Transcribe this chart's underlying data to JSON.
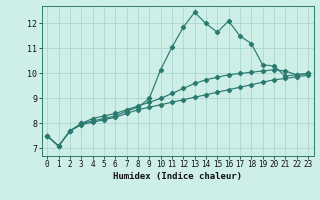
{
  "xlabel": "Humidex (Indice chaleur)",
  "bg_color": "#ceeee8",
  "grid_color": "#a8d4ce",
  "line_color": "#2a7a70",
  "xlim": [
    -0.5,
    23.5
  ],
  "ylim": [
    6.7,
    12.7
  ],
  "yticks": [
    7,
    8,
    9,
    10,
    11,
    12
  ],
  "xticks": [
    0,
    1,
    2,
    3,
    4,
    5,
    6,
    7,
    8,
    9,
    10,
    11,
    12,
    13,
    14,
    15,
    16,
    17,
    18,
    19,
    20,
    21,
    22,
    23
  ],
  "series1_x": [
    0,
    1,
    2,
    3,
    4,
    5,
    6,
    7,
    8,
    9,
    10,
    11,
    12,
    13,
    14,
    15,
    16,
    17,
    18,
    19,
    20,
    21,
    22,
    23
  ],
  "series1_y": [
    7.5,
    7.1,
    7.7,
    8.0,
    8.1,
    8.2,
    8.3,
    8.5,
    8.65,
    9.0,
    10.15,
    11.05,
    11.85,
    12.45,
    12.0,
    11.65,
    12.1,
    11.5,
    11.2,
    10.35,
    10.3,
    9.9,
    9.95,
    10.0
  ],
  "series2_x": [
    0,
    1,
    2,
    3,
    4,
    5,
    6,
    7,
    8,
    9,
    10,
    11,
    12,
    13,
    14,
    15,
    16,
    17,
    18,
    19,
    20,
    21,
    22,
    23
  ],
  "series2_y": [
    7.5,
    7.1,
    7.7,
    8.0,
    8.2,
    8.3,
    8.4,
    8.55,
    8.7,
    8.85,
    9.0,
    9.2,
    9.4,
    9.6,
    9.75,
    9.85,
    9.95,
    10.0,
    10.05,
    10.1,
    10.15,
    10.1,
    9.95,
    10.0
  ],
  "series3_x": [
    0,
    1,
    2,
    3,
    4,
    5,
    6,
    7,
    8,
    9,
    10,
    11,
    12,
    13,
    14,
    15,
    16,
    17,
    18,
    19,
    20,
    21,
    22,
    23
  ],
  "series3_y": [
    7.5,
    7.1,
    7.7,
    7.95,
    8.05,
    8.15,
    8.25,
    8.4,
    8.55,
    8.65,
    8.75,
    8.85,
    8.95,
    9.05,
    9.15,
    9.25,
    9.35,
    9.45,
    9.55,
    9.65,
    9.75,
    9.8,
    9.87,
    9.93
  ]
}
